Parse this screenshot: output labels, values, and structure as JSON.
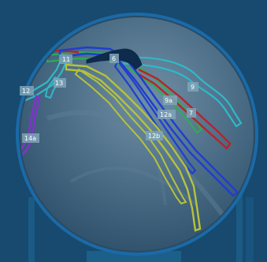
{
  "viewer": {
    "name": "Coronary angiogram segment overlay"
  },
  "segments": [
    {
      "id": "label-11",
      "text": "11"
    },
    {
      "id": "label-6",
      "text": "6"
    },
    {
      "id": "label-12",
      "text": "12"
    },
    {
      "id": "label-13",
      "text": "13"
    },
    {
      "id": "label-9",
      "text": "9"
    },
    {
      "id": "label-9a",
      "text": "9a"
    },
    {
      "id": "label-7",
      "text": "7"
    },
    {
      "id": "label-12a",
      "text": "12a"
    },
    {
      "id": "label-14a",
      "text": "14a"
    },
    {
      "id": "label-12b",
      "text": "12b"
    },
    {
      "id": "label-14",
      "text": "14"
    }
  ],
  "colors": {
    "background": "#174a6e",
    "lens_ring": "#1a6aa8",
    "vessel_cyan": "#2fb8c8",
    "vessel_blue": "#1f3ed0",
    "vessel_green": "#2fae4f",
    "vessel_red": "#b8232b",
    "vessel_yellow": "#b7c23a",
    "vessel_purple": "#7e35c8",
    "vessel_dark": "#0e2b4d"
  }
}
